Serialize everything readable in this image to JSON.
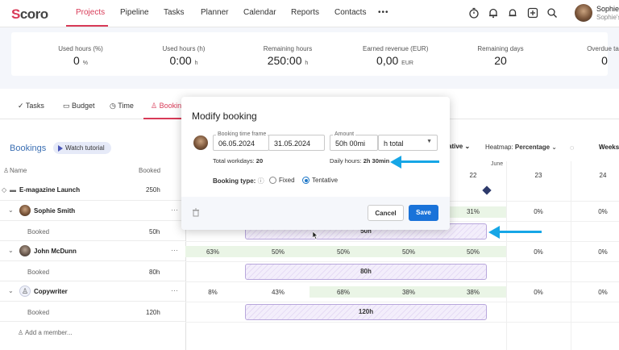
{
  "nav": {
    "logo_s": "S",
    "logo_rest": "coro",
    "items": [
      {
        "label": "Projects",
        "active": true
      },
      {
        "label": "Pipeline"
      },
      {
        "label": "Tasks"
      },
      {
        "label": "Planner"
      },
      {
        "label": "Calendar"
      },
      {
        "label": "Reports"
      },
      {
        "label": "Contacts"
      }
    ],
    "more": "•••",
    "icons": [
      "timer-icon",
      "bell-icon",
      "notification-icon",
      "add-icon",
      "search-icon"
    ],
    "user": {
      "name": "Sophie",
      "sub": "Sophie's S"
    }
  },
  "stats": [
    {
      "label": "Used hours (%)",
      "value": "0",
      "unit": "%"
    },
    {
      "label": "Used hours (h)",
      "value": "0:00",
      "unit": "h"
    },
    {
      "label": "Remaining hours",
      "value": "250:00",
      "unit": "h"
    },
    {
      "label": "Earned revenue (EUR)",
      "value": "0,00",
      "unit": "EUR"
    },
    {
      "label": "Remaining days",
      "value": "20",
      "unit": ""
    },
    {
      "label": "Overdue tas",
      "value": "0",
      "unit": ""
    }
  ],
  "tabs": [
    {
      "label": "Tasks",
      "icon": "check-icon"
    },
    {
      "label": "Budget",
      "icon": "budget-icon"
    },
    {
      "label": "Time",
      "icon": "clock-icon"
    },
    {
      "label": "Bookin",
      "icon": "person-icon",
      "active": true
    }
  ],
  "bookings": {
    "title": "Bookings",
    "tutorial": "Watch tutorial",
    "col_name": "Name",
    "col_booked": "Booked",
    "rows": [
      {
        "name": "E-magazine Launch",
        "booked": "250h"
      },
      {
        "name": "Sophie Smith",
        "booked": ""
      },
      {
        "name": "Booked",
        "booked": "50h"
      },
      {
        "name": "John McDunn",
        "booked": ""
      },
      {
        "name": "Booked",
        "booked": "80h"
      },
      {
        "name": "Copywriter",
        "booked": ""
      },
      {
        "name": "Booked",
        "booked": "120h"
      }
    ],
    "add_member": "Add a member..."
  },
  "timeline": {
    "mode": "ative",
    "heatmap_label": "Heatmap:",
    "heatmap_value": "Percentage",
    "scale": "Weeks",
    "month": "June",
    "days": [
      "22",
      "23",
      "24"
    ],
    "sophie_pcts": [
      "31%",
      "0%",
      "0%"
    ],
    "sophie_bar": "50h",
    "john_pcts": [
      "63%",
      "50%",
      "50%",
      "50%",
      "50%",
      "0%",
      "0%"
    ],
    "john_bar": "80h",
    "copy_pcts": [
      "8%",
      "43%",
      "68%",
      "38%",
      "38%",
      "0%",
      "0%"
    ],
    "copy_bar": "120h"
  },
  "modal": {
    "title": "Modify booking",
    "timeframe_label": "Booking time frame",
    "start": "06.05.2024",
    "end": "31.05.2024",
    "amount_label": "Amount",
    "amount": "50h 00mi",
    "unit": "h total",
    "workdays_label": "Total workdays:",
    "workdays": "20",
    "daily_label": "Daily hours:",
    "daily": "2h 30min",
    "type_label": "Booking type:",
    "type_fixed": "Fixed",
    "type_tentative": "Tentative",
    "selected_type": "Tentative",
    "cancel": "Cancel",
    "save": "Save"
  },
  "colors": {
    "brand": "#d83a57",
    "accent": "#1a73d9",
    "annotation": "#16a6e6"
  }
}
